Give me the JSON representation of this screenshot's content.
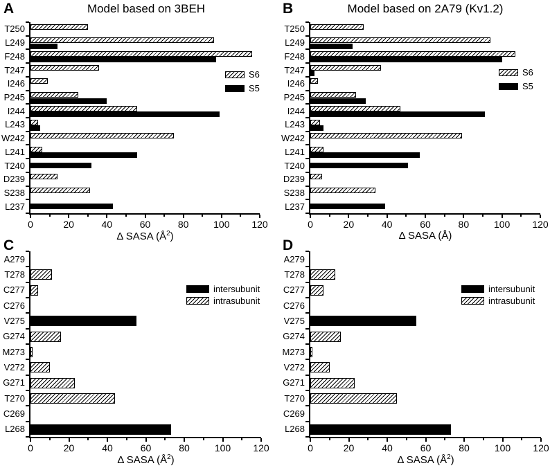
{
  "figure": {
    "description": "Four-panel horizontal bar chart figure of solvent accessible surface area changes per residue",
    "colors": {
      "foreground": "#000000",
      "background": "#ffffff"
    }
  },
  "chart_data": [
    {
      "type": "bar",
      "orientation": "horizontal",
      "panel_label": "A",
      "title": "Model based on 3BEH",
      "xlabel": "Δ SASA (Å²)",
      "xlim": [
        0,
        120
      ],
      "xticks": [
        0,
        20,
        40,
        60,
        80,
        100,
        120
      ],
      "minor_tick_step": 10,
      "grid": false,
      "legend_position": "right-upper",
      "categories": [
        "T250",
        "L249",
        "F248",
        "T247",
        "I246",
        "P245",
        "I244",
        "L243",
        "W242",
        "L241",
        "T240",
        "D239",
        "S238",
        "L237"
      ],
      "series": [
        {
          "name": "S6",
          "pattern": "hatch",
          "values": [
            30,
            96,
            116,
            36,
            9,
            25,
            56,
            4,
            75,
            6,
            0,
            14,
            31,
            0
          ]
        },
        {
          "name": "S5",
          "pattern": "solid",
          "values": [
            0,
            14,
            97,
            0,
            0,
            40,
            99,
            5,
            0,
            56,
            32,
            0,
            0,
            43
          ]
        }
      ]
    },
    {
      "type": "bar",
      "orientation": "horizontal",
      "panel_label": "B",
      "title": "Model based on 2A79 (Kv1.2)",
      "xlabel": "Δ SASA (Å)",
      "xlim": [
        0,
        120
      ],
      "xticks": [
        0,
        20,
        40,
        60,
        80,
        100,
        120
      ],
      "minor_tick_step": 10,
      "grid": false,
      "legend_position": "right-upper",
      "categories": [
        "T250",
        "L249",
        "F248",
        "T247",
        "I246",
        "P245",
        "I244",
        "L243",
        "W242",
        "L241",
        "T240",
        "D239",
        "S238",
        "L237"
      ],
      "series": [
        {
          "name": "S6",
          "pattern": "hatch",
          "values": [
            28,
            94,
            107,
            37,
            4,
            24,
            47,
            5,
            79,
            7,
            0,
            6,
            34,
            0
          ]
        },
        {
          "name": "S5",
          "pattern": "solid",
          "values": [
            0,
            22,
            100,
            2,
            0,
            29,
            91,
            7,
            0,
            57,
            51,
            0,
            0,
            39
          ]
        }
      ]
    },
    {
      "type": "bar",
      "orientation": "horizontal",
      "panel_label": "C",
      "title": "",
      "xlabel": "Δ SASA (Å²)",
      "xlim": [
        0,
        120
      ],
      "xticks": [
        0,
        20,
        40,
        60,
        80,
        100,
        120
      ],
      "minor_tick_step": 10,
      "grid": false,
      "legend_position": "right-upper",
      "categories": [
        "A279",
        "T278",
        "C277",
        "C276",
        "V275",
        "G274",
        "M273",
        "V272",
        "G271",
        "T270",
        "C269",
        "L268"
      ],
      "series": [
        {
          "name": "intersubunit",
          "pattern": "solid",
          "values": [
            0,
            0,
            0,
            0,
            55,
            0,
            0,
            0,
            0,
            0,
            0,
            73
          ]
        },
        {
          "name": "intrasubunit",
          "pattern": "hatch",
          "values": [
            0,
            11,
            4,
            0,
            0,
            16,
            1,
            10,
            23,
            44,
            0,
            0
          ]
        }
      ]
    },
    {
      "type": "bar",
      "orientation": "horizontal",
      "panel_label": "D",
      "title": "",
      "xlabel": "Δ SASA (Å²)",
      "xlim": [
        0,
        120
      ],
      "xticks": [
        0,
        20,
        40,
        60,
        80,
        100,
        120
      ],
      "minor_tick_step": 10,
      "grid": false,
      "legend_position": "right-upper",
      "categories": [
        "A279",
        "T278",
        "C277",
        "C276",
        "V275",
        "G274",
        "M273",
        "V272",
        "G271",
        "T270",
        "C269",
        "L268"
      ],
      "series": [
        {
          "name": "intersubunit",
          "pattern": "solid",
          "values": [
            0,
            0,
            0,
            0,
            55,
            0,
            0,
            0,
            0,
            0,
            0,
            73
          ]
        },
        {
          "name": "intrasubunit",
          "pattern": "hatch",
          "values": [
            0,
            13,
            7,
            0,
            0,
            16,
            1,
            10,
            23,
            45,
            0,
            0
          ]
        }
      ]
    }
  ]
}
